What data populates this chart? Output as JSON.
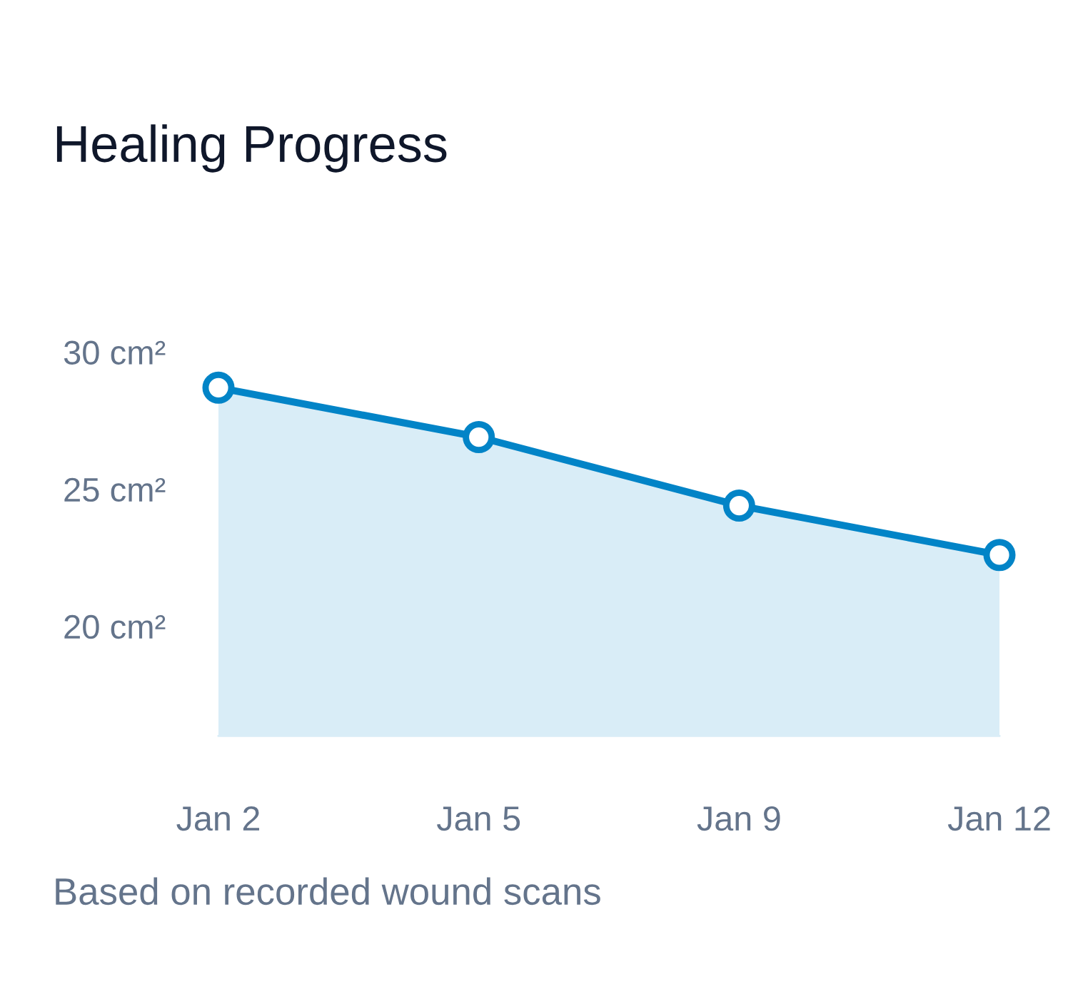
{
  "chart_data": {
    "type": "area",
    "title": "Healing Progress",
    "categories": [
      "Jan 2",
      "Jan 5",
      "Jan 9",
      "Jan 12"
    ],
    "series": [
      {
        "color": "#0284c7",
        "values": [
          28.7,
          26.9,
          24.4,
          22.6
        ]
      }
    ],
    "ylim": [
      16,
      30
    ],
    "yticks": [
      {
        "value": 20,
        "label": "20 cm²"
      },
      {
        "value": 25,
        "label": "25 cm²"
      },
      {
        "value": 30,
        "label": "30 cm²"
      }
    ],
    "marker": "circle",
    "grid": false,
    "annotations": [
      "Based on recorded wound scans"
    ]
  }
}
